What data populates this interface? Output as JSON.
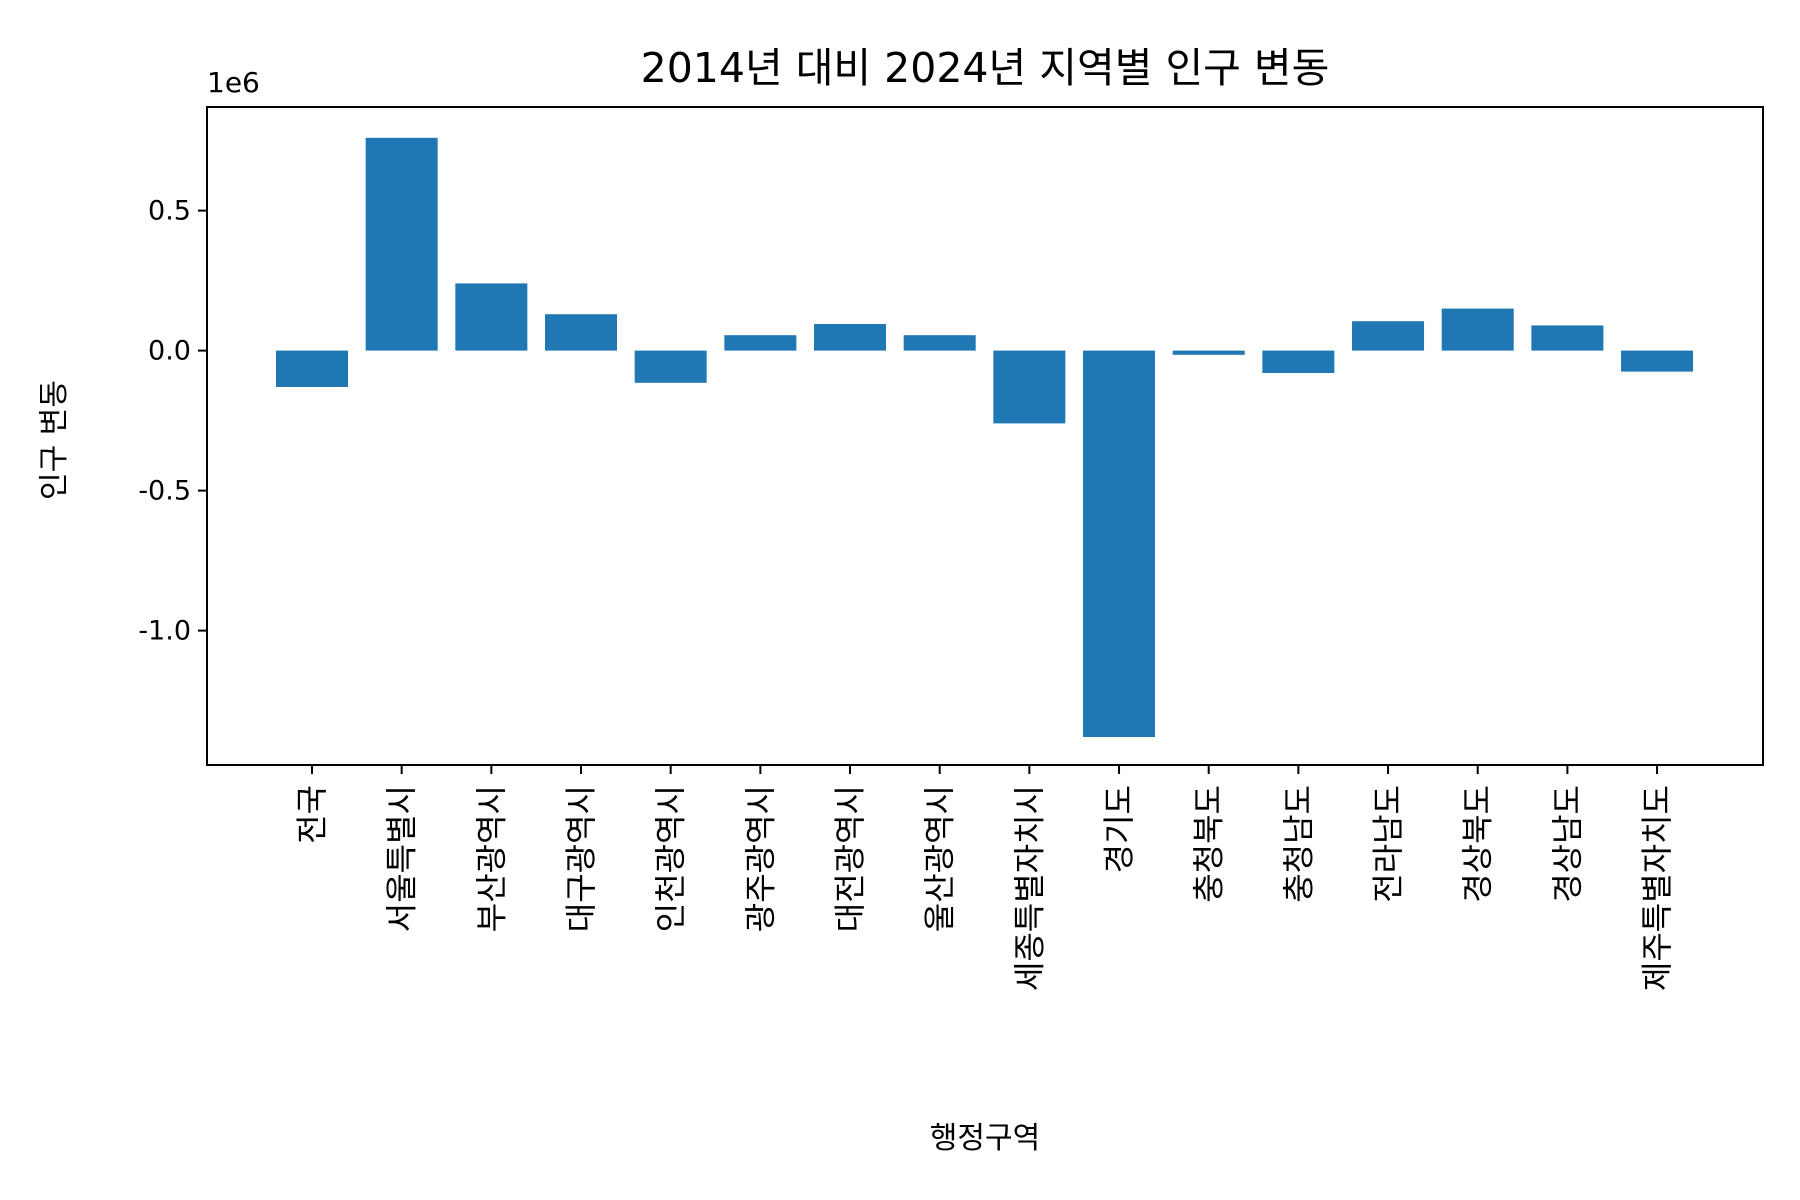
{
  "chart_data": {
    "type": "bar",
    "title": "2014년 대비 2024년 지역별 인구 변동",
    "xlabel": "행정구역",
    "ylabel": "인구 변동",
    "y_offset_label": "1e6",
    "y_scale": 1000000,
    "ylim": [
      -1.48,
      0.87
    ],
    "yticks": [
      -1.0,
      -0.5,
      0.0,
      0.5
    ],
    "ytick_labels": [
      "-1.0",
      "-0.5",
      "0.0",
      "0.5"
    ],
    "grid": false,
    "bar_color": "#1f77b4",
    "categories": [
      "전국",
      "서울특별시",
      "부산광역시",
      "대구광역시",
      "인천광역시",
      "광주광역시",
      "대전광역시",
      "울산광역시",
      "세종특별자치시",
      "경기도",
      "충청북도",
      "충청남도",
      "전라남도",
      "경상북도",
      "경상남도",
      "제주특별자치도"
    ],
    "values": [
      -130000,
      760000,
      240000,
      130000,
      -115000,
      55000,
      95000,
      55000,
      -260000,
      -1380000,
      -15000,
      -80000,
      105000,
      150000,
      90000,
      -75000
    ]
  }
}
